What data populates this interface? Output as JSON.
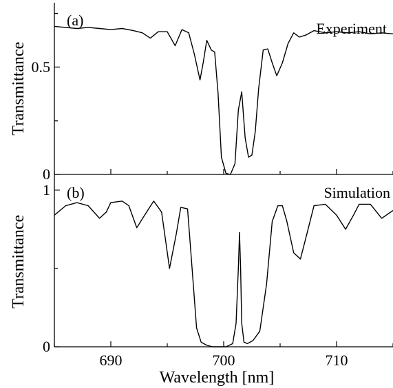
{
  "chart_data": [
    {
      "panel_label": "(a)",
      "type": "line",
      "series": [
        {
          "name": "Experiment",
          "x": [
            685,
            686,
            687,
            688,
            689,
            690,
            691,
            692,
            692.8,
            693.5,
            694.2,
            695,
            695.7,
            696.3,
            696.9,
            697.4,
            697.9,
            698.2,
            698.5,
            698.9,
            699.2,
            699.5,
            699.8,
            700.2,
            700.6,
            701.0,
            701.3,
            701.6,
            701.9,
            702.2,
            702.5,
            702.8,
            703.1,
            703.5,
            703.9,
            704.3,
            704.7,
            705.2,
            705.7,
            706.2,
            706.7,
            707.3,
            708,
            709,
            710,
            711,
            712,
            713,
            714,
            715
          ],
          "y": [
            0.69,
            0.685,
            0.68,
            0.685,
            0.68,
            0.675,
            0.68,
            0.67,
            0.66,
            0.635,
            0.665,
            0.665,
            0.6,
            0.675,
            0.66,
            0.56,
            0.44,
            0.525,
            0.625,
            0.58,
            0.57,
            0.38,
            0.08,
            0.005,
            0.0,
            0.05,
            0.3,
            0.385,
            0.17,
            0.08,
            0.09,
            0.2,
            0.4,
            0.58,
            0.585,
            0.52,
            0.46,
            0.52,
            0.61,
            0.66,
            0.64,
            0.65,
            0.67,
            0.66,
            0.665,
            0.66,
            0.665,
            0.655,
            0.66,
            0.655
          ]
        }
      ],
      "xlim": [
        685,
        715
      ],
      "ylim": [
        0,
        0.8
      ],
      "y_ticks": [
        "0",
        "0.5"
      ],
      "y_tick_values": [
        0,
        0.5
      ],
      "ylabel": "Transmittance",
      "grid": false
    },
    {
      "panel_label": "(b)",
      "type": "line",
      "series": [
        {
          "name": "Simulation",
          "x": [
            685,
            686,
            687,
            688,
            689,
            689.6,
            690,
            691,
            691.6,
            692.3,
            693,
            693.8,
            694.5,
            695.2,
            695.8,
            696.2,
            696.8,
            697.2,
            697.6,
            698.0,
            698.5,
            699.0,
            699.6,
            700.2,
            700.8,
            701.1,
            701.3,
            701.4,
            701.5,
            701.6,
            701.8,
            702.1,
            702.6,
            703.2,
            703.8,
            704.3,
            704.8,
            705.2,
            705.6,
            706.2,
            706.8,
            707.3,
            708,
            709,
            710,
            710.8,
            711.5,
            712,
            713,
            714,
            715
          ],
          "y": [
            0.84,
            0.9,
            0.92,
            0.9,
            0.82,
            0.86,
            0.92,
            0.93,
            0.9,
            0.76,
            0.84,
            0.93,
            0.86,
            0.5,
            0.72,
            0.89,
            0.88,
            0.5,
            0.12,
            0.03,
            0.01,
            0.0,
            0.0,
            0.0,
            0.02,
            0.15,
            0.5,
            0.73,
            0.5,
            0.15,
            0.03,
            0.02,
            0.04,
            0.1,
            0.4,
            0.8,
            0.9,
            0.9,
            0.8,
            0.6,
            0.56,
            0.7,
            0.9,
            0.91,
            0.84,
            0.75,
            0.84,
            0.91,
            0.91,
            0.82,
            0.87
          ]
        }
      ],
      "xlim": [
        685,
        715
      ],
      "ylim": [
        0,
        1.1
      ],
      "y_ticks": [
        "0",
        "1"
      ],
      "y_tick_values": [
        0,
        1
      ],
      "ylabel": "Transmittance",
      "x_ticks": [
        "690",
        "700",
        "710"
      ],
      "x_tick_values": [
        690,
        700,
        710
      ],
      "xlabel": "Wavelength [nm]",
      "grid": false
    }
  ]
}
